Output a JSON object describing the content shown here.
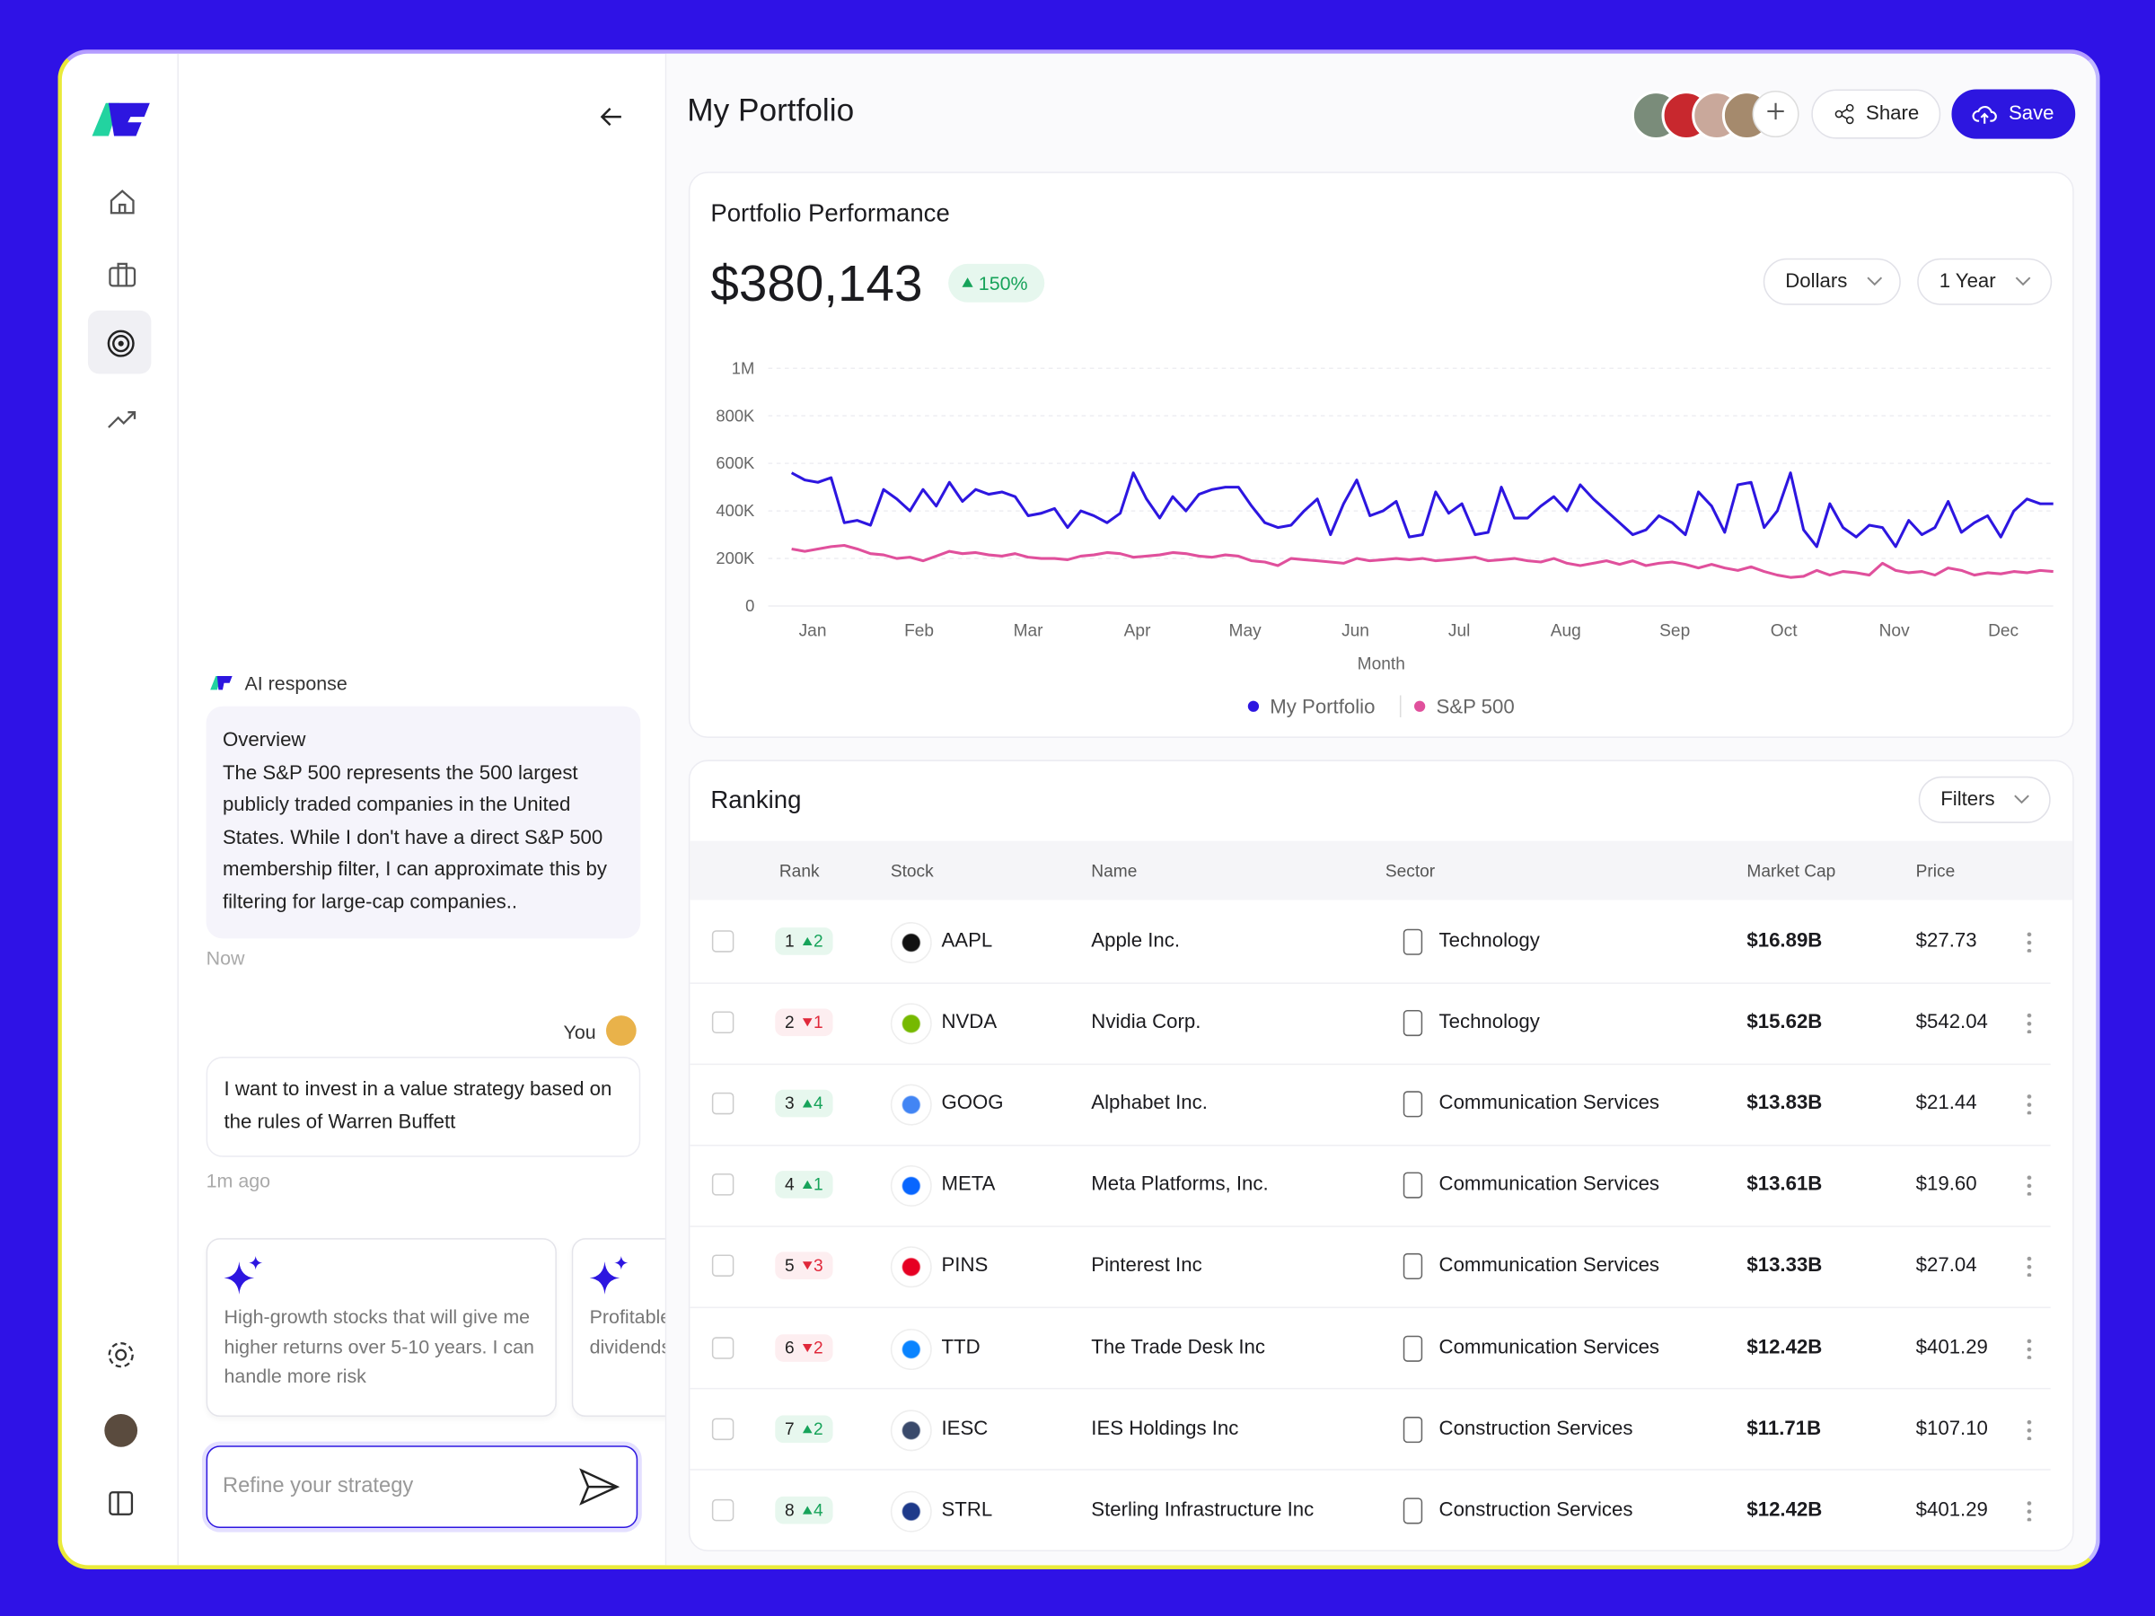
{
  "header": {
    "title": "My Portfolio",
    "share": "Share",
    "save": "Save"
  },
  "chat": {
    "ai_label": "AI response",
    "ai_title": "Overview",
    "ai_text": "The S&P 500 represents the 500 largest publicly traded companies in the United States. While I don't have a direct S&P 500 membership filter, I can approximate this by filtering for large-cap companies..",
    "ai_time": "Now",
    "user_label": "You",
    "user_text": "I want to invest in a value strategy based on the rules of Warren Buffett",
    "user_time": "1m ago",
    "suggestions": [
      "High-growth stocks that will give me higher returns over 5-10 years. I can handle more risk",
      "Profitable companies with consistent dividends and shareholder returns"
    ],
    "input_placeholder": "Refine your strategy"
  },
  "performance": {
    "title": "Portfolio Performance",
    "total": "$380,143",
    "change": "150%",
    "unit_select": "Dollars",
    "range_select": "1 Year"
  },
  "chart_data": {
    "type": "line",
    "x_label": "Month",
    "xlim": [
      0,
      96
    ],
    "xticks": [
      {
        "value": 1.6,
        "label": "Jan"
      },
      {
        "value": 9.7,
        "label": "Feb"
      },
      {
        "value": 18,
        "label": "Mar"
      },
      {
        "value": 26.3,
        "label": "Apr"
      },
      {
        "value": 34.5,
        "label": "May"
      },
      {
        "value": 42.9,
        "label": "Jun"
      },
      {
        "value": 50.8,
        "label": "Jul"
      },
      {
        "value": 58.9,
        "label": "Aug"
      },
      {
        "value": 67.2,
        "label": "Sep"
      },
      {
        "value": 75.5,
        "label": "Oct"
      },
      {
        "value": 83.9,
        "label": "Nov"
      },
      {
        "value": 92.2,
        "label": "Dec"
      }
    ],
    "ylim": [
      0,
      1000000
    ],
    "yticks": [
      0,
      {
        "value": 200000,
        "label": "200K"
      },
      {
        "value": 400000,
        "label": "400K"
      },
      {
        "value": 600000,
        "label": "600K"
      },
      {
        "value": 800000,
        "label": "800K"
      },
      {
        "value": 1000000,
        "label": "1M"
      }
    ],
    "grid": true,
    "series": [
      {
        "name": "My Portfolio",
        "color": "#2d16e0",
        "values": [
          560000,
          530000,
          520000,
          540000,
          350000,
          360000,
          340000,
          490000,
          450000,
          400000,
          490000,
          420000,
          520000,
          440000,
          490000,
          470000,
          480000,
          460000,
          380000,
          390000,
          410000,
          330000,
          400000,
          380000,
          350000,
          390000,
          560000,
          450000,
          370000,
          460000,
          400000,
          470000,
          490000,
          500000,
          500000,
          420000,
          350000,
          330000,
          340000,
          400000,
          450000,
          300000,
          430000,
          530000,
          380000,
          400000,
          440000,
          290000,
          300000,
          480000,
          390000,
          430000,
          300000,
          310000,
          500000,
          370000,
          370000,
          420000,
          460000,
          400000,
          510000,
          450000,
          400000,
          350000,
          300000,
          320000,
          380000,
          350000,
          300000,
          480000,
          420000,
          310000,
          510000,
          520000,
          330000,
          400000,
          560000,
          320000,
          250000,
          430000,
          330000,
          290000,
          340000,
          330000,
          250000,
          360000,
          300000,
          330000,
          440000,
          310000,
          350000,
          380000,
          290000,
          400000,
          450000,
          430000,
          430000
        ]
      },
      {
        "name": "S&P 500",
        "color": "#e0509c",
        "values": [
          240000,
          230000,
          240000,
          250000,
          255000,
          240000,
          220000,
          215000,
          200000,
          205000,
          190000,
          210000,
          230000,
          220000,
          225000,
          215000,
          210000,
          220000,
          205000,
          200000,
          200000,
          195000,
          210000,
          215000,
          225000,
          220000,
          205000,
          210000,
          215000,
          225000,
          220000,
          210000,
          205000,
          215000,
          210000,
          190000,
          185000,
          170000,
          200000,
          195000,
          190000,
          185000,
          180000,
          200000,
          190000,
          195000,
          200000,
          195000,
          200000,
          190000,
          195000,
          200000,
          205000,
          190000,
          195000,
          200000,
          190000,
          185000,
          200000,
          180000,
          170000,
          180000,
          190000,
          175000,
          190000,
          170000,
          180000,
          185000,
          175000,
          160000,
          175000,
          160000,
          150000,
          165000,
          145000,
          130000,
          120000,
          125000,
          150000,
          130000,
          145000,
          140000,
          130000,
          180000,
          150000,
          140000,
          145000,
          130000,
          160000,
          150000,
          130000,
          140000,
          135000,
          145000,
          140000,
          150000,
          145000
        ]
      }
    ]
  },
  "ranking": {
    "title": "Ranking",
    "filters": "Filters",
    "columns": [
      "Rank",
      "Stock",
      "Name",
      "Sector",
      "Market Cap",
      "Price"
    ],
    "rows": [
      {
        "rank": 1,
        "change": 2,
        "direction": "up",
        "ticker": "AAPL",
        "name": "Apple Inc.",
        "sector": "Technology",
        "market_cap": "$16.89B",
        "price": "$27.73"
      },
      {
        "rank": 2,
        "change": 1,
        "direction": "down",
        "ticker": "NVDA",
        "name": "Nvidia Corp.",
        "sector": "Technology",
        "market_cap": "$15.62B",
        "price": "$542.04"
      },
      {
        "rank": 3,
        "change": 4,
        "direction": "up",
        "ticker": "GOOG",
        "name": "Alphabet Inc.",
        "sector": "Communication Services",
        "market_cap": "$13.83B",
        "price": "$21.44"
      },
      {
        "rank": 4,
        "change": 1,
        "direction": "up",
        "ticker": "META",
        "name": "Meta Platforms, Inc.",
        "sector": "Communication Services",
        "market_cap": "$13.61B",
        "price": "$19.60"
      },
      {
        "rank": 5,
        "change": 3,
        "direction": "down",
        "ticker": "PINS",
        "name": "Pinterest Inc",
        "sector": "Communication Services",
        "market_cap": "$13.33B",
        "price": "$27.04"
      },
      {
        "rank": 6,
        "change": 2,
        "direction": "down",
        "ticker": "TTD",
        "name": "The Trade Desk Inc",
        "sector": "Communication Services",
        "market_cap": "$12.42B",
        "price": "$401.29"
      },
      {
        "rank": 7,
        "change": 2,
        "direction": "up",
        "ticker": "IESC",
        "name": "IES Holdings Inc",
        "sector": "Construction Services",
        "market_cap": "$11.71B",
        "price": "$107.10"
      },
      {
        "rank": 8,
        "change": 4,
        "direction": "up",
        "ticker": "STRL",
        "name": "Sterling Infrastructure Inc",
        "sector": "Construction Services",
        "market_cap": "$12.42B",
        "price": "$401.29"
      }
    ]
  }
}
